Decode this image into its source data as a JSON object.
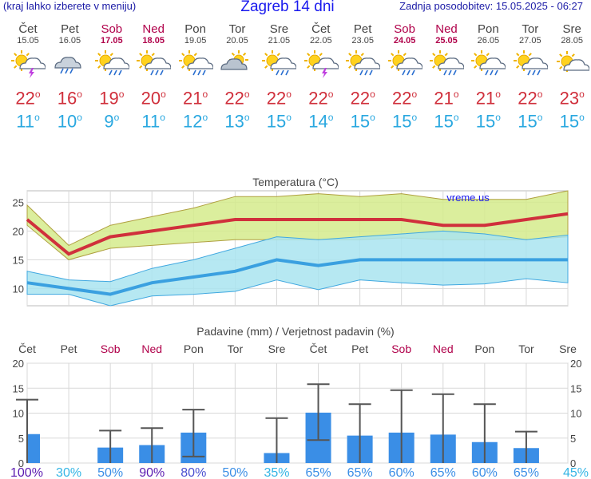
{
  "header": {
    "menu_hint": "(kraj lahko izberete v meniju)",
    "title": "Zagreb 14 dni",
    "updated": "Zadnja posodobitev: 15.05.2025 - 06:27"
  },
  "days": [
    {
      "name": "Čet",
      "date": "15.05",
      "weekend": false,
      "icon": "sun-cloud-thunder-icon",
      "tmax": "22",
      "tmin": "11"
    },
    {
      "name": "Pet",
      "date": "16.05",
      "weekend": false,
      "icon": "cloud-rain-icon",
      "tmax": "16",
      "tmin": "10"
    },
    {
      "name": "Sob",
      "date": "17.05",
      "weekend": true,
      "icon": "sun-cloud-rain-icon",
      "tmax": "19",
      "tmin": "9"
    },
    {
      "name": "Ned",
      "date": "18.05",
      "weekend": true,
      "icon": "sun-cloud-rain-icon",
      "tmax": "20",
      "tmin": "11"
    },
    {
      "name": "Pon",
      "date": "19.05",
      "weekend": false,
      "icon": "sun-cloud-rain-icon",
      "tmax": "21",
      "tmin": "12"
    },
    {
      "name": "Tor",
      "date": "20.05",
      "weekend": false,
      "icon": "cloud-sun-icon",
      "tmax": "22",
      "tmin": "13"
    },
    {
      "name": "Sre",
      "date": "21.05",
      "weekend": false,
      "icon": "sun-cloud-rain-icon",
      "tmax": "22",
      "tmin": "15"
    },
    {
      "name": "Čet",
      "date": "22.05",
      "weekend": false,
      "icon": "sun-cloud-thunder-icon",
      "tmax": "22",
      "tmin": "14"
    },
    {
      "name": "Pet",
      "date": "23.05",
      "weekend": false,
      "icon": "sun-cloud-rain-icon",
      "tmax": "22",
      "tmin": "15"
    },
    {
      "name": "Sob",
      "date": "24.05",
      "weekend": true,
      "icon": "sun-cloud-rain-icon",
      "tmax": "22",
      "tmin": "15"
    },
    {
      "name": "Ned",
      "date": "25.05",
      "weekend": true,
      "icon": "sun-cloud-rain-icon",
      "tmax": "21",
      "tmin": "15"
    },
    {
      "name": "Pon",
      "date": "26.05",
      "weekend": false,
      "icon": "sun-cloud-rain-icon",
      "tmax": "21",
      "tmin": "15"
    },
    {
      "name": "Tor",
      "date": "27.05",
      "weekend": false,
      "icon": "sun-cloud-rain-icon",
      "tmax": "22",
      "tmin": "15"
    },
    {
      "name": "Sre",
      "date": "28.05",
      "weekend": false,
      "icon": "sun-cloud-icon",
      "tmax": "23",
      "tmin": "15"
    }
  ],
  "colors": {
    "weekend": "#b0004a",
    "tmax": "#d0303c",
    "tmin": "#2aa8e0",
    "max_band": "#d5eb8c",
    "min_band": "#a9e4f0",
    "bar": "#3a8ee6",
    "prob_violet": "#5a1ab0",
    "prob_cyan": "#33b5e5"
  },
  "chart_data": [
    {
      "type": "line",
      "title": "Temperatura (°C)",
      "watermark": "vreme.us",
      "ylim": [
        7,
        27
      ],
      "yticks": [
        10,
        15,
        20,
        25
      ],
      "categories": [
        "Čet",
        "Pet",
        "Sob",
        "Ned",
        "Pon",
        "Tor",
        "Sre",
        "Čet",
        "Pet",
        "Sob",
        "Ned",
        "Pon",
        "Tor",
        "Sre"
      ],
      "series": [
        {
          "name": "max",
          "values": [
            22,
            16,
            19,
            20,
            21,
            22,
            22,
            22,
            22,
            22,
            21,
            21,
            22,
            23
          ],
          "band_low": [
            21,
            15,
            17,
            17.5,
            18,
            18.5,
            18.5,
            18.5,
            18.5,
            18.8,
            18.5,
            18.5,
            18.5,
            19
          ],
          "band_high": [
            24.5,
            17.5,
            21,
            22.5,
            24,
            26,
            26,
            26.5,
            26,
            26.5,
            25.5,
            25.5,
            25.5,
            27
          ]
        },
        {
          "name": "min",
          "values": [
            11,
            10,
            9,
            11,
            12,
            13,
            15,
            14,
            15,
            15,
            15,
            15,
            15,
            15
          ],
          "band_low": [
            9,
            9,
            7,
            8.7,
            9,
            9.5,
            11.5,
            9.8,
            11.5,
            11,
            10.6,
            10.8,
            11.7,
            11
          ],
          "band_high": [
            13,
            11.5,
            11.2,
            13.5,
            15,
            17,
            19,
            18.5,
            19,
            19.5,
            20,
            19.5,
            18.5,
            19.3
          ]
        }
      ]
    },
    {
      "type": "bar",
      "title": "Padavine (mm) / Verjetnost padavin (%)",
      "ylim": [
        0,
        20
      ],
      "yticks": [
        0,
        5,
        10,
        15,
        20
      ],
      "categories": [
        "Čet",
        "Pet",
        "Sob",
        "Ned",
        "Pon",
        "Tor",
        "Sre",
        "Čet",
        "Pet",
        "Sob",
        "Ned",
        "Pon",
        "Tor",
        "Sre"
      ],
      "values": [
        5.8,
        0,
        3.1,
        3.6,
        6.1,
        0,
        2.0,
        10.1,
        5.5,
        6.1,
        5.7,
        4.2,
        3.0,
        0
      ],
      "err_low": [
        0,
        0,
        0,
        0,
        1.3,
        0,
        0,
        4.6,
        0,
        0,
        0,
        0,
        0,
        0
      ],
      "err_high": [
        12.7,
        0,
        6.5,
        7.0,
        10.7,
        0,
        9.0,
        15.8,
        11.8,
        14.6,
        13.8,
        11.8,
        6.3,
        0
      ],
      "probabilities": [
        "100%",
        "30%",
        "50%",
        "90%",
        "80%",
        "50%",
        "35%",
        "65%",
        "65%",
        "60%",
        "65%",
        "60%",
        "65%",
        "45%"
      ],
      "prob_colors": [
        "#5a1ab0",
        "#33b5e5",
        "#3a8ee6",
        "#5a1ab0",
        "#4a4fd0",
        "#3a8ee6",
        "#33b5e5",
        "#3a8ee6",
        "#3a8ee6",
        "#3a8ee6",
        "#3a8ee6",
        "#3a8ee6",
        "#3a8ee6",
        "#33b5e5"
      ]
    }
  ]
}
